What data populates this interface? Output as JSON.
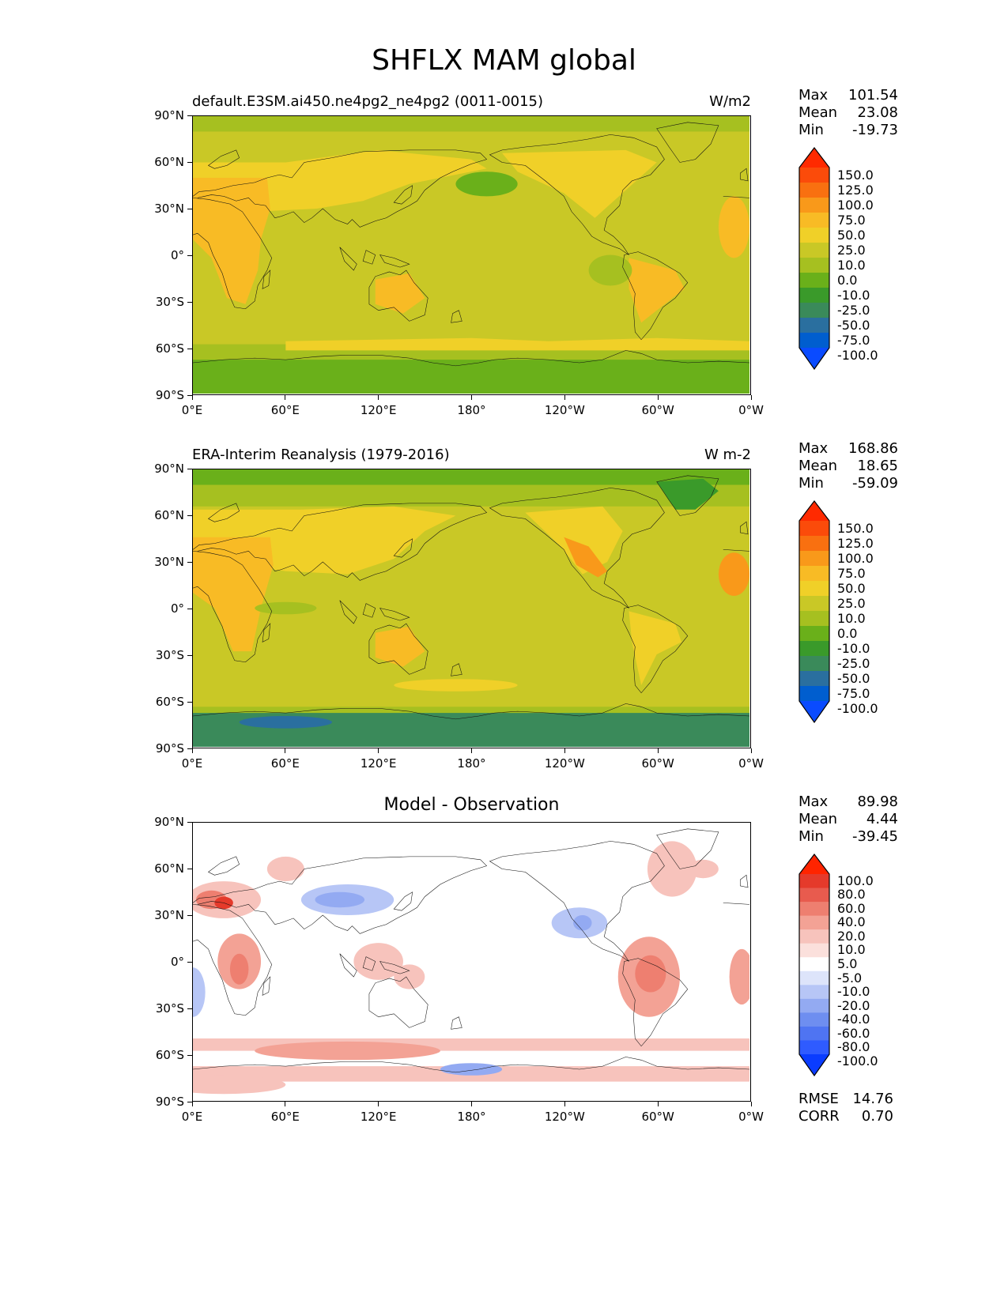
{
  "title": "SHFLX MAM global",
  "panels": [
    {
      "id": "model",
      "title": "default.E3SM.ai450.ne4pg2_ne4pg2 (0011-0015)",
      "units": "W/m2",
      "stats": {
        "max_label": "Max",
        "max": "101.54",
        "mean_label": "Mean",
        "mean": "23.08",
        "min_label": "Min",
        "min": "-19.73"
      },
      "colorbar": [
        "150.0",
        "125.0",
        "100.0",
        "75.0",
        "50.0",
        "25.0",
        "10.0",
        "0.0",
        "-10.0",
        "-25.0",
        "-50.0",
        "-75.0",
        "-100.0"
      ]
    },
    {
      "id": "obs",
      "title": "ERA-Interim Reanalysis (1979-2016)",
      "units": "W m-2",
      "stats": {
        "max_label": "Max",
        "max": "168.86",
        "mean_label": "Mean",
        "mean": "18.65",
        "min_label": "Min",
        "min": "-59.09"
      },
      "colorbar": [
        "150.0",
        "125.0",
        "100.0",
        "75.0",
        "50.0",
        "25.0",
        "10.0",
        "0.0",
        "-10.0",
        "-25.0",
        "-50.0",
        "-75.0",
        "-100.0"
      ]
    },
    {
      "id": "diff",
      "title": "Model - Observation",
      "units": "",
      "stats": {
        "max_label": "Max",
        "max": "89.98",
        "mean_label": "Mean",
        "mean": "4.44",
        "min_label": "Min",
        "min": "-39.45"
      },
      "colorbar": [
        "100.0",
        "80.0",
        "60.0",
        "40.0",
        "20.0",
        "10.0",
        "5.0",
        "-5.0",
        "-10.0",
        "-20.0",
        "-40.0",
        "-60.0",
        "-80.0",
        "-100.0"
      ],
      "extra": {
        "rmse_label": "RMSE",
        "rmse": "14.76",
        "corr_label": "CORR",
        "corr": "0.70"
      }
    }
  ],
  "axes": {
    "lat_labels": [
      "90°N",
      "60°N",
      "30°N",
      "0°",
      "30°S",
      "60°S",
      "90°S"
    ],
    "lon_labels": [
      "0°E",
      "60°E",
      "120°E",
      "180°",
      "120°W",
      "60°W",
      "0°W"
    ]
  },
  "colors": {
    "field_scale": [
      "#0a4bff",
      "#005ecf",
      "#2a6f9f",
      "#3a8a5a",
      "#3a9a2a",
      "#6ab01a",
      "#a6c020",
      "#c9c826",
      "#f0d028",
      "#f8bb25",
      "#f9991a",
      "#f97010",
      "#fb4b0a",
      "#ff2a00"
    ],
    "diff_scale": [
      "#0a3cff",
      "#2f5bff",
      "#4f74f2",
      "#6e8ef0",
      "#93aaf2",
      "#b7c6f6",
      "#dde4fa",
      "#ffffff",
      "#fbe0dc",
      "#f7c3bc",
      "#f3a295",
      "#ee7f70",
      "#e85b4e",
      "#e53a2b",
      "#ff2400"
    ]
  }
}
